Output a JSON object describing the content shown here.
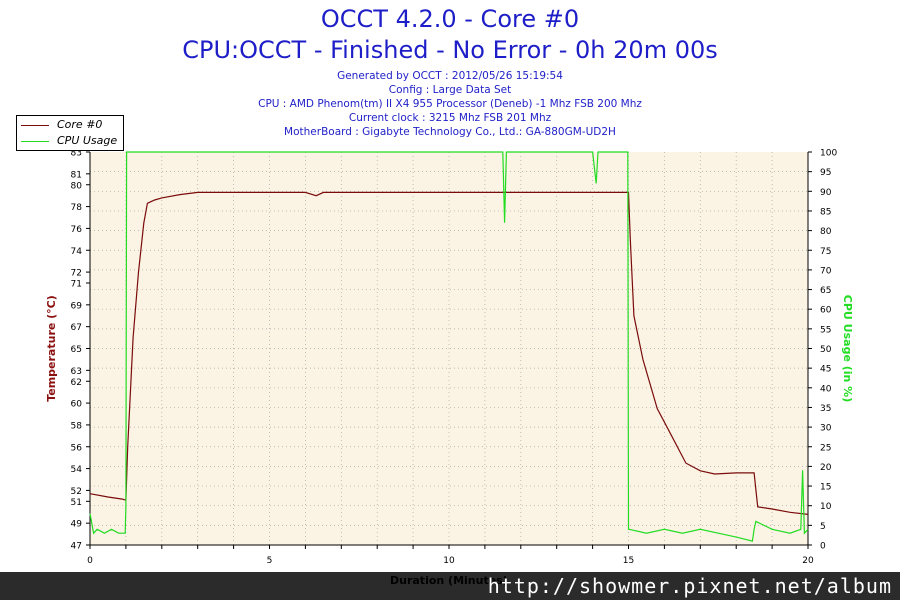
{
  "header": {
    "title": "OCCT 4.2.0 - Core #0",
    "subtitle": "CPU:OCCT - Finished - No Error - 0h 20m 00s",
    "info": [
      "Generated by OCCT : 2012/05/26 15:19:54",
      "Config : Large Data Set",
      "CPU : AMD Phenom(tm) II X4 955 Processor (Deneb) -1 Mhz FSB 200 Mhz",
      "Current clock : 3215 Mhz FSB 201 Mhz",
      "MotherBoard : Gigabyte Technology Co., Ltd.: GA-880GM-UD2H"
    ]
  },
  "legend": {
    "core": "Core #0",
    "cpu": "CPU Usage"
  },
  "watermark": "http://showmer.pixnet.net/album",
  "colors": {
    "temperature": "#7a0c0c",
    "cpu": "#22dd22",
    "title": "#1e1ec8",
    "plot_bg": "#fbf3e3"
  },
  "chart_data": {
    "type": "line",
    "xlabel": "Duration (Minutes)",
    "ylabel": "Temperature (°C)",
    "y2label": "CPU Usage (in %)",
    "xlim": [
      0,
      20
    ],
    "ylim": [
      47,
      83
    ],
    "y2lim": [
      0,
      100
    ],
    "xticks": [
      0,
      5,
      10,
      15,
      20
    ],
    "yticks": [
      47,
      49,
      51,
      52,
      54,
      56,
      58,
      60,
      62,
      63,
      65,
      67,
      69,
      71,
      72,
      74,
      76,
      78,
      80,
      81,
      83
    ],
    "y2ticks": [
      0,
      5,
      10,
      15,
      20,
      25,
      30,
      35,
      40,
      45,
      50,
      55,
      60,
      65,
      70,
      75,
      80,
      85,
      90,
      95,
      100
    ],
    "grid": true,
    "legend_position": "top-left",
    "series": [
      {
        "name": "Core #0",
        "axis": "left",
        "x": [
          0,
          0.5,
          0.9,
          1.0,
          1.05,
          1.2,
          1.35,
          1.5,
          1.6,
          1.8,
          2.0,
          2.5,
          3.0,
          4.0,
          5.0,
          6.0,
          6.3,
          6.5,
          7.0,
          8.0,
          9.0,
          10.0,
          11.0,
          12.0,
          13.0,
          14.0,
          15.0,
          15.05,
          15.15,
          15.4,
          15.8,
          16.2,
          16.6,
          17.0,
          17.4,
          18.0,
          18.5,
          18.6,
          19.0,
          19.5,
          20.0
        ],
        "y": [
          51.7,
          51.4,
          51.2,
          51.1,
          56,
          66,
          72,
          76.5,
          78.3,
          78.6,
          78.8,
          79.1,
          79.3,
          79.3,
          79.3,
          79.3,
          79.0,
          79.3,
          79.3,
          79.3,
          79.3,
          79.3,
          79.3,
          79.3,
          79.3,
          79.3,
          79.3,
          75,
          68,
          64,
          59.5,
          57,
          54.5,
          53.8,
          53.5,
          53.6,
          53.6,
          50.5,
          50.3,
          50.0,
          49.8
        ]
      },
      {
        "name": "CPU Usage",
        "axis": "right",
        "x": [
          0,
          0.1,
          0.2,
          0.4,
          0.6,
          0.8,
          0.98,
          1.0,
          1.02,
          1.05,
          1.5,
          2.0,
          3.0,
          4.0,
          5.0,
          6.0,
          7.0,
          8.0,
          9.0,
          10.0,
          11.0,
          11.5,
          11.55,
          11.6,
          12.0,
          13.0,
          14.0,
          14.1,
          14.15,
          14.2,
          14.98,
          15.0,
          15.02,
          15.5,
          16.0,
          16.5,
          17.0,
          17.5,
          18.0,
          18.45,
          18.5,
          18.55,
          19.0,
          19.5,
          19.8,
          19.85,
          19.9,
          20.0
        ],
        "y": [
          8,
          3,
          4,
          3,
          4,
          3,
          3,
          10,
          100,
          100,
          100,
          100,
          100,
          100,
          100,
          100,
          100,
          100,
          100,
          100,
          100,
          100,
          82,
          100,
          100,
          100,
          100,
          92,
          100,
          100,
          100,
          4,
          4,
          3,
          4,
          3,
          4,
          3,
          2,
          1,
          4,
          6,
          4,
          3,
          4,
          19,
          3,
          4
        ]
      }
    ]
  }
}
